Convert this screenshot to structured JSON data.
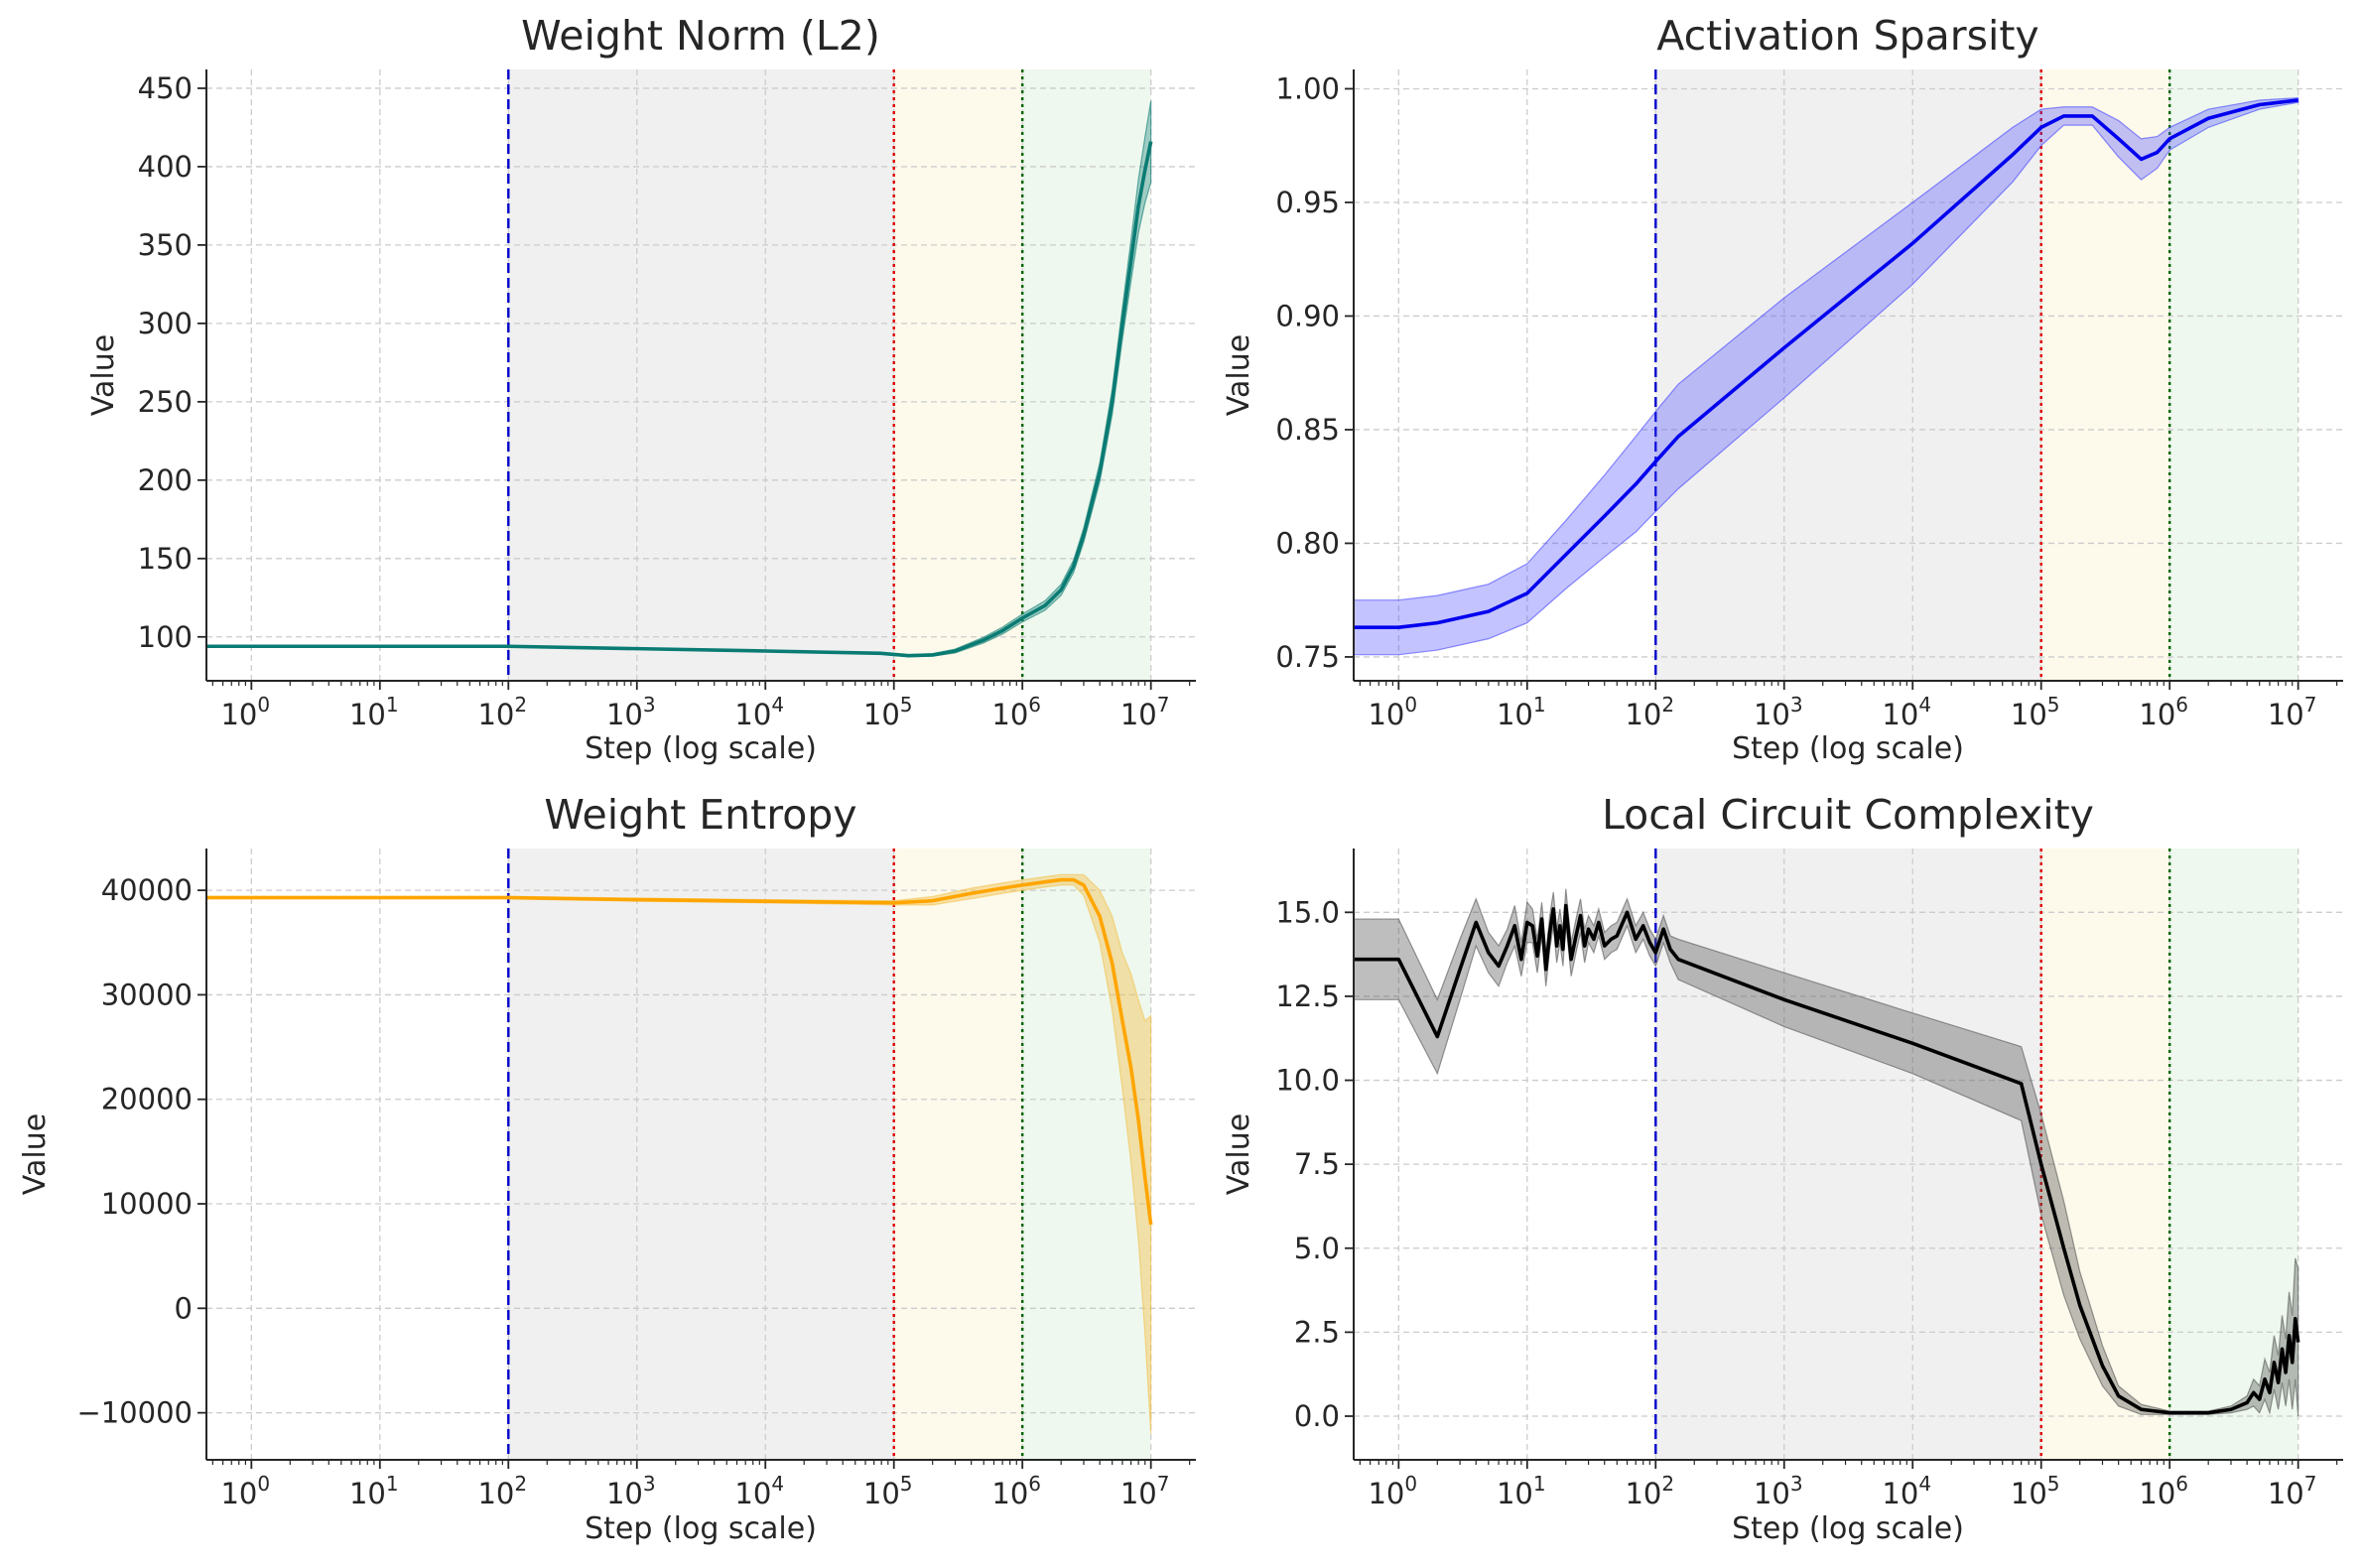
{
  "figure": {
    "x_axis_label": "Step (log scale)",
    "y_axis_label": "Value",
    "x_ticks": [
      {
        "base": "10",
        "exp": "0"
      },
      {
        "base": "10",
        "exp": "1"
      },
      {
        "base": "10",
        "exp": "2"
      },
      {
        "base": "10",
        "exp": "3"
      },
      {
        "base": "10",
        "exp": "4"
      },
      {
        "base": "10",
        "exp": "5"
      },
      {
        "base": "10",
        "exp": "6"
      },
      {
        "base": "10",
        "exp": "7"
      }
    ]
  },
  "colors": {
    "background": "#ffffff",
    "memorization_region": "#f0f0f0",
    "circuit_formation_region": "#fdfaeb",
    "cleanup_region": "#eef8ee",
    "marker_1e2": "#0000cc",
    "marker_1e5": "#dd0000",
    "marker_1e6": "#006600",
    "grid": "#cccccc",
    "axis": "#262626"
  },
  "chart_data": [
    {
      "type": "line",
      "title": "Weight Norm (L2)",
      "xlabel": "Step (log scale)",
      "ylabel": "Value",
      "xscale": "log",
      "xlim_log10": [
        -0.35,
        7.35
      ],
      "ylim": [
        72,
        462
      ],
      "yticks": [
        100,
        150,
        200,
        250,
        300,
        350,
        400,
        450
      ],
      "ytick_labels": [
        "100",
        "150",
        "200",
        "250",
        "300",
        "350",
        "400",
        "450"
      ],
      "color": "#0a7b73",
      "band_color": "#0a7b73",
      "band_opacity": 0.35,
      "regions": [
        {
          "from": 100,
          "to": 100000,
          "color": "#f0f0f0"
        },
        {
          "from": 100000,
          "to": 1000000,
          "color": "#fdfaeb"
        },
        {
          "from": 1000000,
          "to": 10000000,
          "color": "#eef8ee"
        }
      ],
      "markers": [
        {
          "step": 100,
          "color": "#0000cc",
          "style": "dashed"
        },
        {
          "step": 100000,
          "color": "#dd0000",
          "style": "dotted"
        },
        {
          "step": 1000000,
          "color": "#006600",
          "style": "dotted"
        }
      ],
      "series": {
        "name": "Weight Norm (L2)",
        "points": [
          {
            "step": 0.45,
            "mean": 94,
            "band": 0.4
          },
          {
            "step": 1,
            "mean": 94,
            "band": 0.4
          },
          {
            "step": 10,
            "mean": 94,
            "band": 0.4
          },
          {
            "step": 100,
            "mean": 94,
            "band": 0.4
          },
          {
            "step": 1000,
            "mean": 92.5,
            "band": 0.4
          },
          {
            "step": 10000,
            "mean": 91,
            "band": 0.4
          },
          {
            "step": 80000,
            "mean": 89.5,
            "band": 0.5
          },
          {
            "step": 130000,
            "mean": 88,
            "band": 0.6
          },
          {
            "step": 200000,
            "mean": 88.5,
            "band": 0.8
          },
          {
            "step": 300000,
            "mean": 91,
            "band": 1.2
          },
          {
            "step": 500000,
            "mean": 98,
            "band": 1.8
          },
          {
            "step": 700000,
            "mean": 104,
            "band": 2.2
          },
          {
            "step": 1000000,
            "mean": 112,
            "band": 2.5
          },
          {
            "step": 1500000,
            "mean": 120,
            "band": 3
          },
          {
            "step": 2000000,
            "mean": 130,
            "band": 3.5
          },
          {
            "step": 2500000,
            "mean": 145,
            "band": 4
          },
          {
            "step": 3000000,
            "mean": 165,
            "band": 4.5
          },
          {
            "step": 4000000,
            "mean": 205,
            "band": 6
          },
          {
            "step": 5000000,
            "mean": 250,
            "band": 8
          },
          {
            "step": 6000000,
            "mean": 300,
            "band": 10
          },
          {
            "step": 7000000,
            "mean": 340,
            "band": 13
          },
          {
            "step": 8000000,
            "mean": 375,
            "band": 17
          },
          {
            "step": 9000000,
            "mean": 398,
            "band": 21
          },
          {
            "step": 10000000,
            "mean": 416,
            "band": 26
          }
        ]
      }
    },
    {
      "type": "line",
      "title": "Activation Sparsity",
      "xlabel": "Step (log scale)",
      "ylabel": "Value",
      "xscale": "log",
      "xlim_log10": [
        -0.35,
        7.35
      ],
      "ylim": [
        0.7395,
        1.0085
      ],
      "yticks": [
        0.75,
        0.8,
        0.85,
        0.9,
        0.95,
        1.0
      ],
      "ytick_labels": [
        "0.75",
        "0.80",
        "0.85",
        "0.90",
        "0.95",
        "1.00"
      ],
      "color": "#0000ee",
      "band_color": "#4444ff",
      "band_opacity": 0.32,
      "regions": [
        {
          "from": 100,
          "to": 100000,
          "color": "#f0f0f0"
        },
        {
          "from": 100000,
          "to": 1000000,
          "color": "#fdfaeb"
        },
        {
          "from": 1000000,
          "to": 10000000,
          "color": "#eef8ee"
        }
      ],
      "markers": [
        {
          "step": 100,
          "color": "#0000cc",
          "style": "dashed"
        },
        {
          "step": 100000,
          "color": "#dd0000",
          "style": "dotted"
        },
        {
          "step": 1000000,
          "color": "#006600",
          "style": "dotted"
        }
      ],
      "series": {
        "name": "Activation Sparsity",
        "points": [
          {
            "step": 0.45,
            "mean": 0.763,
            "band": 0.012
          },
          {
            "step": 1,
            "mean": 0.763,
            "band": 0.012
          },
          {
            "step": 2,
            "mean": 0.765,
            "band": 0.012
          },
          {
            "step": 5,
            "mean": 0.77,
            "band": 0.012
          },
          {
            "step": 10,
            "mean": 0.778,
            "band": 0.013
          },
          {
            "step": 20,
            "mean": 0.795,
            "band": 0.015
          },
          {
            "step": 40,
            "mean": 0.812,
            "band": 0.018
          },
          {
            "step": 70,
            "mean": 0.826,
            "band": 0.021
          },
          {
            "step": 100,
            "mean": 0.836,
            "band": 0.022
          },
          {
            "step": 150,
            "mean": 0.847,
            "band": 0.023
          },
          {
            "step": 1000,
            "mean": 0.886,
            "band": 0.022
          },
          {
            "step": 10000,
            "mean": 0.932,
            "band": 0.018
          },
          {
            "step": 60000,
            "mean": 0.971,
            "band": 0.012
          },
          {
            "step": 100000,
            "mean": 0.983,
            "band": 0.008
          },
          {
            "step": 150000,
            "mean": 0.988,
            "band": 0.004
          },
          {
            "step": 250000,
            "mean": 0.988,
            "band": 0.004
          },
          {
            "step": 400000,
            "mean": 0.978,
            "band": 0.008
          },
          {
            "step": 600000,
            "mean": 0.969,
            "band": 0.009
          },
          {
            "step": 800000,
            "mean": 0.972,
            "band": 0.007
          },
          {
            "step": 1000000,
            "mean": 0.978,
            "band": 0.005
          },
          {
            "step": 2000000,
            "mean": 0.987,
            "band": 0.004
          },
          {
            "step": 5000000,
            "mean": 0.993,
            "band": 0.002
          },
          {
            "step": 10000000,
            "mean": 0.995,
            "band": 0.001
          }
        ]
      }
    },
    {
      "type": "line",
      "title": "Weight Entropy",
      "xlabel": "Step (log scale)",
      "ylabel": "Value",
      "xscale": "log",
      "xlim_log10": [
        -0.35,
        7.35
      ],
      "ylim": [
        -14500,
        44000
      ],
      "yticks": [
        -10000,
        0,
        10000,
        20000,
        30000,
        40000
      ],
      "ytick_labels": [
        "−10000",
        "0",
        "10000",
        "20000",
        "30000",
        "40000"
      ],
      "color": "#ffa500",
      "band_color": "#f2c24d",
      "band_opacity": 0.45,
      "regions": [
        {
          "from": 100,
          "to": 100000,
          "color": "#f0f0f0"
        },
        {
          "from": 100000,
          "to": 1000000,
          "color": "#fdfaeb"
        },
        {
          "from": 1000000,
          "to": 10000000,
          "color": "#eef8ee"
        }
      ],
      "markers": [
        {
          "step": 100,
          "color": "#0000cc",
          "style": "dashed"
        },
        {
          "step": 100000,
          "color": "#dd0000",
          "style": "dotted"
        },
        {
          "step": 1000000,
          "color": "#006600",
          "style": "dotted"
        }
      ],
      "series": {
        "name": "Weight Entropy",
        "points": [
          {
            "step": 0.45,
            "mean": 39300,
            "band": 120
          },
          {
            "step": 1,
            "mean": 39300,
            "band": 120
          },
          {
            "step": 100,
            "mean": 39300,
            "band": 120
          },
          {
            "step": 1000,
            "mean": 39100,
            "band": 150
          },
          {
            "step": 10000,
            "mean": 38950,
            "band": 150
          },
          {
            "step": 100000,
            "mean": 38800,
            "band": 200
          },
          {
            "step": 200000,
            "mean": 39000,
            "band": 400
          },
          {
            "step": 400000,
            "mean": 39700,
            "band": 500
          },
          {
            "step": 700000,
            "mean": 40200,
            "band": 500
          },
          {
            "step": 1000000,
            "mean": 40500,
            "band": 500
          },
          {
            "step": 1500000,
            "mean": 40800,
            "band": 500
          },
          {
            "step": 2000000,
            "mean": 41000,
            "band": 500
          },
          {
            "step": 2500000,
            "mean": 41000,
            "band": 500
          },
          {
            "step": 3000000,
            "mean": 40500,
            "band": 1000
          },
          {
            "step": 4000000,
            "mean": 37500,
            "band": 2500
          },
          {
            "step": 5000000,
            "mean": 33000,
            "band": 4500
          },
          {
            "step": 6000000,
            "mean": 27500,
            "band": 6500
          },
          {
            "step": 7000000,
            "mean": 23000,
            "band": 9000
          },
          {
            "step": 8000000,
            "mean": 18000,
            "band": 11500
          },
          {
            "step": 9000000,
            "mean": 12500,
            "band": 15000
          },
          {
            "step": 10000000,
            "mean": 8000,
            "band": 20000
          }
        ]
      }
    },
    {
      "type": "line",
      "title": "Local Circuit Complexity",
      "xlabel": "Step (log scale)",
      "ylabel": "Value",
      "xscale": "log",
      "xlim_log10": [
        -0.35,
        7.35
      ],
      "ylim": [
        -1.3,
        16.9
      ],
      "yticks": [
        0.0,
        2.5,
        5.0,
        7.5,
        10.0,
        12.5,
        15.0
      ],
      "ytick_labels": [
        "0.0",
        "2.5",
        "5.0",
        "7.5",
        "10.0",
        "12.5",
        "15.0"
      ],
      "color": "#000000",
      "band_color": "#555555",
      "band_opacity": 0.38,
      "regions": [
        {
          "from": 100,
          "to": 100000,
          "color": "#f0f0f0"
        },
        {
          "from": 100000,
          "to": 1000000,
          "color": "#fdfaeb"
        },
        {
          "from": 1000000,
          "to": 10000000,
          "color": "#eef8ee"
        }
      ],
      "markers": [
        {
          "step": 100,
          "color": "#0000cc",
          "style": "dashed"
        },
        {
          "step": 100000,
          "color": "#dd0000",
          "style": "dotted"
        },
        {
          "step": 1000000,
          "color": "#006600",
          "style": "dotted"
        }
      ],
      "series": {
        "name": "Local Circuit Complexity",
        "points": [
          {
            "step": 0.45,
            "mean": 13.6,
            "band": 1.2
          },
          {
            "step": 1,
            "mean": 13.6,
            "band": 1.2
          },
          {
            "step": 2,
            "mean": 11.3,
            "band": 1.1
          },
          {
            "step": 3,
            "mean": 13.3,
            "band": 0.9
          },
          {
            "step": 4,
            "mean": 14.7,
            "band": 0.7
          },
          {
            "step": 5,
            "mean": 13.8,
            "band": 0.6
          },
          {
            "step": 6,
            "mean": 13.4,
            "band": 0.6
          },
          {
            "step": 7,
            "mean": 14.0,
            "band": 0.5
          },
          {
            "step": 8,
            "mean": 14.6,
            "band": 0.6
          },
          {
            "step": 9,
            "mean": 13.6,
            "band": 0.5
          },
          {
            "step": 10,
            "mean": 14.7,
            "band": 0.6
          },
          {
            "step": 11,
            "mean": 14.6,
            "band": 0.5
          },
          {
            "step": 12,
            "mean": 13.7,
            "band": 0.5
          },
          {
            "step": 13,
            "mean": 14.8,
            "band": 0.5
          },
          {
            "step": 14,
            "mean": 13.3,
            "band": 0.5
          },
          {
            "step": 15,
            "mean": 14.4,
            "band": 0.5
          },
          {
            "step": 16,
            "mean": 15.1,
            "band": 0.5
          },
          {
            "step": 17,
            "mean": 14.0,
            "band": 0.5
          },
          {
            "step": 18,
            "mean": 14.6,
            "band": 0.5
          },
          {
            "step": 19,
            "mean": 13.9,
            "band": 0.5
          },
          {
            "step": 20,
            "mean": 15.2,
            "band": 0.5
          },
          {
            "step": 22,
            "mean": 13.6,
            "band": 0.5
          },
          {
            "step": 24,
            "mean": 14.3,
            "band": 0.5
          },
          {
            "step": 26,
            "mean": 14.9,
            "band": 0.5
          },
          {
            "step": 28,
            "mean": 14.0,
            "band": 0.5
          },
          {
            "step": 30,
            "mean": 14.5,
            "band": 0.4
          },
          {
            "step": 33,
            "mean": 14.2,
            "band": 0.4
          },
          {
            "step": 36,
            "mean": 14.7,
            "band": 0.4
          },
          {
            "step": 40,
            "mean": 14.0,
            "band": 0.4
          },
          {
            "step": 45,
            "mean": 14.2,
            "band": 0.4
          },
          {
            "step": 50,
            "mean": 14.3,
            "band": 0.4
          },
          {
            "step": 60,
            "mean": 15.0,
            "band": 0.4
          },
          {
            "step": 70,
            "mean": 14.2,
            "band": 0.4
          },
          {
            "step": 80,
            "mean": 14.6,
            "band": 0.4
          },
          {
            "step": 90,
            "mean": 14.1,
            "band": 0.4
          },
          {
            "step": 100,
            "mean": 13.8,
            "band": 0.4
          },
          {
            "step": 115,
            "mean": 14.5,
            "band": 0.4
          },
          {
            "step": 130,
            "mean": 13.9,
            "band": 0.4
          },
          {
            "step": 150,
            "mean": 13.6,
            "band": 0.6
          },
          {
            "step": 1000,
            "mean": 12.4,
            "band": 0.8
          },
          {
            "step": 10000,
            "mean": 11.1,
            "band": 0.9
          },
          {
            "step": 70000,
            "mean": 9.9,
            "band": 1.1
          },
          {
            "step": 100000,
            "mean": 7.5,
            "band": 1.5
          },
          {
            "step": 150000,
            "mean": 5.0,
            "band": 1.4
          },
          {
            "step": 200000,
            "mean": 3.3,
            "band": 1.0
          },
          {
            "step": 300000,
            "mean": 1.5,
            "band": 0.6
          },
          {
            "step": 400000,
            "mean": 0.6,
            "band": 0.3
          },
          {
            "step": 600000,
            "mean": 0.2,
            "band": 0.15
          },
          {
            "step": 1000000,
            "mean": 0.1,
            "band": 0.05
          },
          {
            "step": 2000000,
            "mean": 0.1,
            "band": 0.05
          },
          {
            "step": 3000000,
            "mean": 0.2,
            "band": 0.1
          },
          {
            "step": 4000000,
            "mean": 0.4,
            "band": 0.2
          },
          {
            "step": 4500000,
            "mean": 0.7,
            "band": 0.4
          },
          {
            "step": 5000000,
            "mean": 0.5,
            "band": 0.4
          },
          {
            "step": 5500000,
            "mean": 1.1,
            "band": 0.6
          },
          {
            "step": 6000000,
            "mean": 0.7,
            "band": 0.6
          },
          {
            "step": 6500000,
            "mean": 1.6,
            "band": 0.8
          },
          {
            "step": 7000000,
            "mean": 1.0,
            "band": 0.8
          },
          {
            "step": 7500000,
            "mean": 2.0,
            "band": 1.0
          },
          {
            "step": 8000000,
            "mean": 1.3,
            "band": 1.0
          },
          {
            "step": 8500000,
            "mean": 2.4,
            "band": 1.3
          },
          {
            "step": 9000000,
            "mean": 1.6,
            "band": 1.4
          },
          {
            "step": 9500000,
            "mean": 2.9,
            "band": 1.8
          },
          {
            "step": 10000000,
            "mean": 2.2,
            "band": 2.2
          }
        ]
      }
    }
  ]
}
